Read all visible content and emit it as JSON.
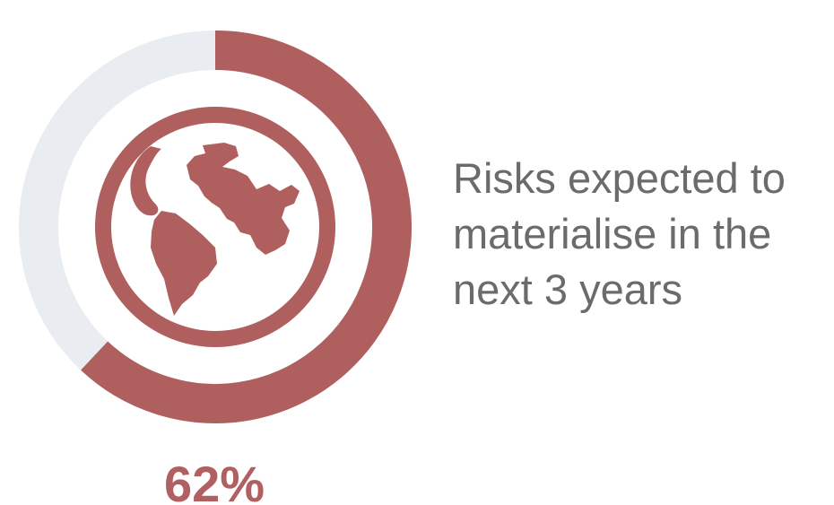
{
  "chart_data": {
    "type": "pie",
    "slices": [
      {
        "label": "Risks expected to materialise in the next 3 years",
        "value": 62
      },
      {
        "label": "",
        "value": 38
      }
    ],
    "value_label": "62%",
    "description_lines": [
      "Risks expected to",
      "materialise in the",
      "next 3 years"
    ]
  },
  "colors": {
    "accent": "#b05f5f",
    "track": "#e9ecf0",
    "text": "#6b6b6b"
  },
  "center_icon": "globe-icon"
}
